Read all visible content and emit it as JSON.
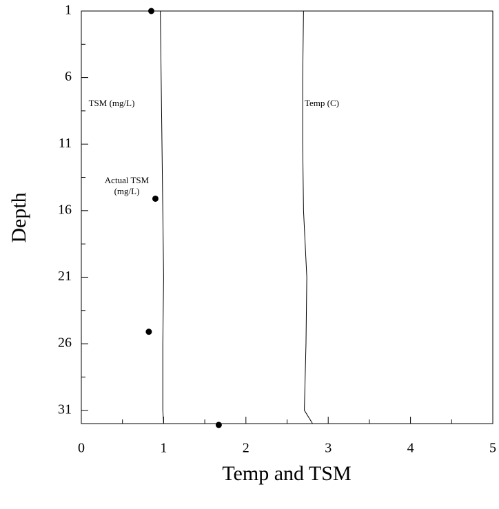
{
  "chart_data": {
    "type": "line",
    "xlabel": "Temp and TSM",
    "ylabel": "Depth",
    "xlim": [
      0,
      5
    ],
    "xticks": [
      0,
      1,
      2,
      3,
      4,
      5
    ],
    "xticks_minor": [
      0.5,
      1.5,
      2.5,
      3.5,
      4.5
    ],
    "ylim": [
      1,
      32
    ],
    "yticks": [
      1,
      6,
      11,
      16,
      21,
      26,
      31
    ],
    "yticks_minor": [
      3.5,
      8.5,
      13.5,
      18.5,
      23.5,
      28.5
    ],
    "y_inverted": true,
    "series": [
      {
        "name": "TSM (mg/L)",
        "color": "#000000",
        "style": "line",
        "depths": [
          1,
          6,
          11,
          16,
          21,
          26,
          31,
          32
        ],
        "values": [
          0.96,
          0.97,
          0.98,
          0.99,
          1.0,
          0.99,
          0.99,
          1.0
        ]
      },
      {
        "name": "Temp (C)",
        "color": "#000000",
        "style": "line",
        "depths": [
          1,
          6,
          11,
          16,
          21,
          26,
          31,
          32
        ],
        "values": [
          2.7,
          2.69,
          2.69,
          2.7,
          2.74,
          2.73,
          2.71,
          2.81
        ]
      },
      {
        "name": "Actual TSM (mg/L)",
        "color": "#000000",
        "style": "points",
        "depths": [
          1,
          15.1,
          25.1,
          32.1
        ],
        "values": [
          0.85,
          0.9,
          0.82,
          1.67
        ]
      }
    ]
  }
}
